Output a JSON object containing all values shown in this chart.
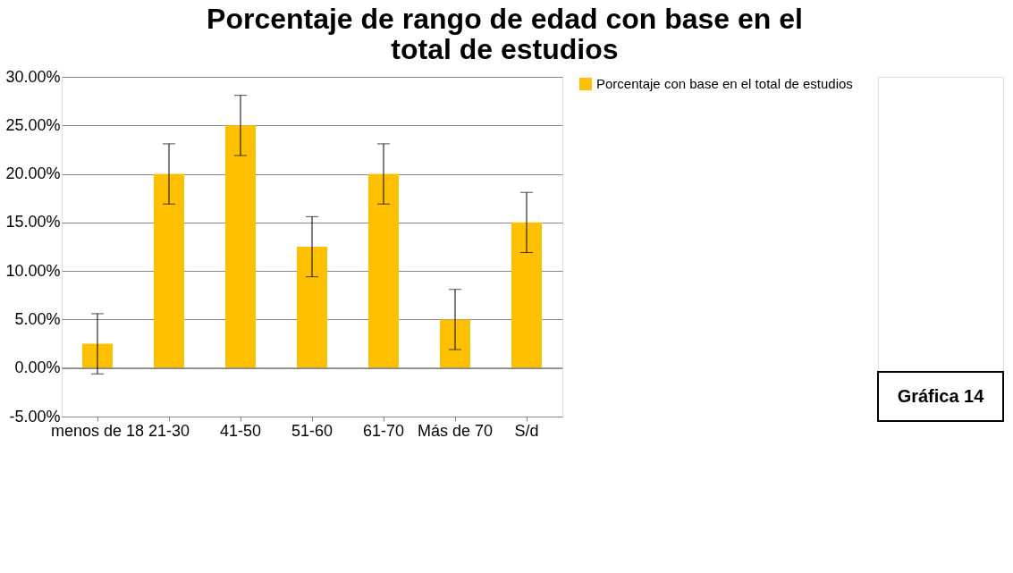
{
  "chart_data": {
    "type": "bar",
    "title": "Porcentaje de rango de edad  con base  en el total de estudios",
    "categories": [
      "menos de 18",
      "21-30",
      "41-50",
      "51-60",
      "61-70",
      "Más de 70",
      "S/d"
    ],
    "series": [
      {
        "name": "Porcentaje con base  en el total de estudios",
        "color": "#ffc000",
        "values": [
          2.5,
          20,
          25,
          12.5,
          20,
          5,
          15
        ],
        "errors": [
          3.1,
          3.1,
          3.1,
          3.1,
          3.1,
          3.1,
          3.1
        ]
      }
    ],
    "ylim": [
      -5,
      30
    ],
    "yticks": [
      {
        "value": -5,
        "label": "-5.00%"
      },
      {
        "value": 0,
        "label": "0.00%"
      },
      {
        "value": 5,
        "label": "5.00%"
      },
      {
        "value": 10,
        "label": "10.00%"
      },
      {
        "value": 15,
        "label": "15.00%"
      },
      {
        "value": 20,
        "label": "20.00%"
      },
      {
        "value": 25,
        "label": "25.00%"
      },
      {
        "value": 30,
        "label": "30.00%"
      }
    ],
    "grid": "y",
    "legend": "right",
    "annotations": [
      "Gráfica 14"
    ]
  }
}
